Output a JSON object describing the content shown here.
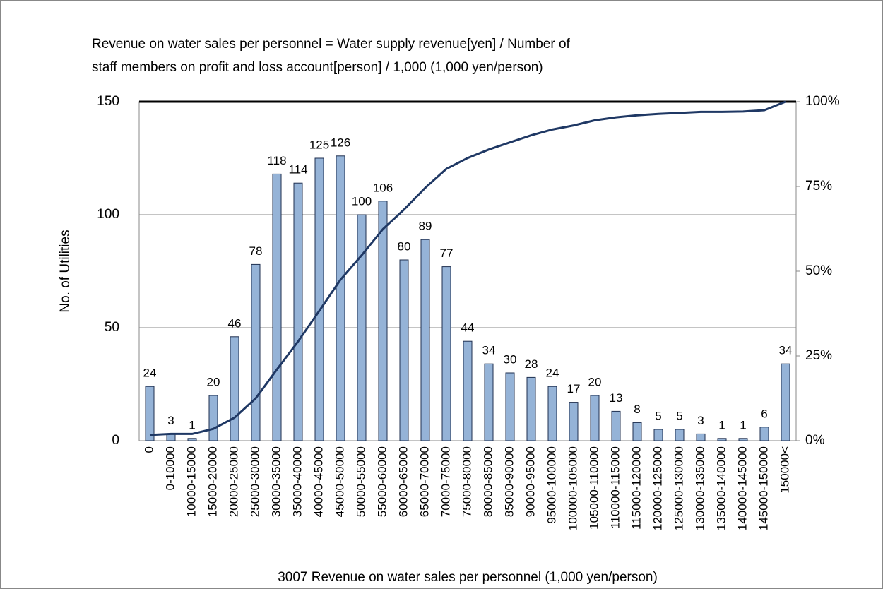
{
  "chart_data": {
    "type": "pareto",
    "title": [
      "Revenue on water sales per personnel = Water supply revenue[yen] / Number of",
      "staff members on profit and loss account[person] / 1,000 (1,000 yen/person)"
    ],
    "xlabel": "3007 Revenue on water sales per personnel (1,000 yen/person)",
    "ylabel": "No. of Utilities",
    "categories": [
      "0",
      "0-10000",
      "10000-15000",
      "15000-20000",
      "20000-25000",
      "25000-30000",
      "30000-35000",
      "35000-40000",
      "40000-45000",
      "45000-50000",
      "50000-55000",
      "55000-60000",
      "60000-65000",
      "65000-70000",
      "70000-75000",
      "75000-80000",
      "80000-85000",
      "85000-90000",
      "90000-95000",
      "95000-100000",
      "100000-105000",
      "105000-110000",
      "110000-115000",
      "115000-120000",
      "120000-125000",
      "125000-130000",
      "130000-135000",
      "135000-140000",
      "140000-145000",
      "145000-150000",
      "150000<"
    ],
    "series": [
      {
        "name": "No. of Utilities",
        "color": "#95b3d7",
        "values": [
          24,
          3,
          1,
          20,
          46,
          78,
          118,
          114,
          125,
          126,
          100,
          106,
          80,
          89,
          77,
          44,
          34,
          30,
          28,
          24,
          17,
          20,
          13,
          8,
          5,
          5,
          3,
          1,
          1,
          6,
          34
        ]
      },
      {
        "name": "Cumulative",
        "color": "#1f3864",
        "axis": "y2",
        "values": [
          1.7,
          2.0,
          2.0,
          3.5,
          6.8,
          12.5,
          21.0,
          29.3,
          38.3,
          47.5,
          54.7,
          62.4,
          68.2,
          74.6,
          80.2,
          83.4,
          85.9,
          88.0,
          90.1,
          91.8,
          93.0,
          94.5,
          95.4,
          96.0,
          96.4,
          96.7,
          97.0,
          97.0,
          97.1,
          97.5,
          100
        ]
      }
    ],
    "ylim": [
      0,
      150
    ],
    "yticks": [
      0,
      50,
      100,
      150
    ],
    "y2lim": [
      0,
      100
    ],
    "y2ticks": [
      {
        "value": 0,
        "label": "0%"
      },
      {
        "value": 25,
        "label": "25%"
      },
      {
        "value": 50,
        "label": "50%"
      },
      {
        "value": 75,
        "label": "75%"
      },
      {
        "value": 100,
        "label": "100%"
      }
    ],
    "grid": true
  }
}
